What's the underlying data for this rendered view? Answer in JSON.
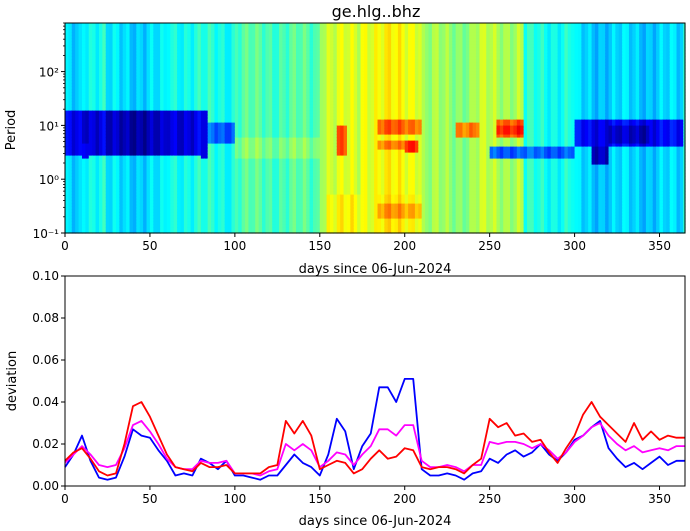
{
  "chart_data": [
    {
      "type": "heatmap",
      "title": "ge.hlg..bhz",
      "xlabel": "days since 06-Jun-2024",
      "ylabel": "Period",
      "xlim": [
        0,
        365
      ],
      "ylim": [
        0.1,
        800
      ],
      "y_scale": "log",
      "colormap": "jet",
      "xticks": [
        0,
        50,
        100,
        150,
        200,
        250,
        300,
        350
      ],
      "xtick_labels": [
        "0",
        "50",
        "100",
        "150",
        "200",
        "250",
        "300",
        "350"
      ],
      "yticks": [
        0.1,
        1,
        10,
        100
      ],
      "ytick_labels": [
        "10⁻¹",
        "10⁰",
        "10¹",
        "10²"
      ],
      "x_bands": [
        {
          "x": [
            0,
            10
          ],
          "level": 0.32
        },
        {
          "x": [
            10,
            25
          ],
          "level": 0.4
        },
        {
          "x": [
            25,
            60
          ],
          "level": 0.34
        },
        {
          "x": [
            60,
            100
          ],
          "level": 0.4
        },
        {
          "x": [
            100,
            150
          ],
          "level": 0.45
        },
        {
          "x": [
            150,
            175
          ],
          "level": 0.58
        },
        {
          "x": [
            175,
            210
          ],
          "level": 0.62
        },
        {
          "x": [
            210,
            240
          ],
          "level": 0.52
        },
        {
          "x": [
            240,
            270
          ],
          "level": 0.55
        },
        {
          "x": [
            270,
            300
          ],
          "level": 0.4
        },
        {
          "x": [
            300,
            365
          ],
          "level": 0.33
        }
      ],
      "features": [
        {
          "x": [
            0,
            85
          ],
          "period": [
            3,
            20
          ],
          "level": 0.1
        },
        {
          "x": [
            25,
            60
          ],
          "period": [
            3,
            20
          ],
          "level": 0.05
        },
        {
          "x": [
            10,
            14
          ],
          "period": [
            2.5,
            5
          ],
          "level": 0.15
        },
        {
          "x": [
            80,
            85
          ],
          "period": [
            2.5,
            20
          ],
          "level": 0.1
        },
        {
          "x": [
            85,
            100
          ],
          "period": [
            5,
            12
          ],
          "level": 0.22
        },
        {
          "x": [
            100,
            150
          ],
          "period": [
            2.5,
            6
          ],
          "level": 0.5
        },
        {
          "x": [
            160,
            166
          ],
          "period": [
            3,
            10
          ],
          "level": 0.78
        },
        {
          "x": [
            155,
            175
          ],
          "period": [
            0.1,
            0.5
          ],
          "level": 0.62
        },
        {
          "x": [
            185,
            210
          ],
          "period": [
            7,
            14
          ],
          "level": 0.78
        },
        {
          "x": [
            185,
            200
          ],
          "period": [
            3.5,
            5.5
          ],
          "level": 0.74
        },
        {
          "x": [
            200,
            208
          ],
          "period": [
            3.2,
            5.5
          ],
          "level": 0.86
        },
        {
          "x": [
            185,
            210
          ],
          "period": [
            0.1,
            0.5
          ],
          "level": 0.64
        },
        {
          "x": [
            185,
            210
          ],
          "period": [
            0.2,
            0.35
          ],
          "level": 0.72
        },
        {
          "x": [
            230,
            245
          ],
          "period": [
            6,
            12
          ],
          "level": 0.76
        },
        {
          "x": [
            255,
            270
          ],
          "period": [
            6,
            14
          ],
          "level": 0.8
        },
        {
          "x": [
            255,
            270
          ],
          "period": [
            7,
            10
          ],
          "level": 0.86
        },
        {
          "x": [
            250,
            300
          ],
          "period": [
            2.5,
            4
          ],
          "level": 0.22
        },
        {
          "x": [
            310,
            320
          ],
          "period": [
            2,
            4
          ],
          "level": 0.08
        },
        {
          "x": [
            300,
            365
          ],
          "period": [
            4,
            14
          ],
          "level": 0.12
        },
        {
          "x": [
            320,
            345
          ],
          "period": [
            5,
            10
          ],
          "level": 0.06
        }
      ]
    },
    {
      "type": "line",
      "xlabel": "days since 06-Jun-2024",
      "ylabel": "deviation",
      "xlim": [
        0,
        365
      ],
      "ylim": [
        0,
        0.1
      ],
      "xticks": [
        0,
        50,
        100,
        150,
        200,
        250,
        300,
        350
      ],
      "xtick_labels": [
        "0",
        "50",
        "100",
        "150",
        "200",
        "250",
        "300",
        "350"
      ],
      "yticks": [
        0,
        0.02,
        0.04,
        0.06,
        0.08,
        0.1
      ],
      "ytick_labels": [
        "0.00",
        "0.02",
        "0.04",
        "0.06",
        "0.08",
        "0.10"
      ],
      "x": [
        0,
        5,
        10,
        15,
        20,
        25,
        30,
        35,
        40,
        45,
        50,
        55,
        60,
        65,
        70,
        75,
        80,
        85,
        90,
        95,
        100,
        105,
        110,
        115,
        120,
        125,
        130,
        135,
        140,
        145,
        150,
        155,
        160,
        165,
        170,
        175,
        180,
        185,
        190,
        195,
        200,
        205,
        210,
        215,
        220,
        225,
        230,
        235,
        240,
        245,
        250,
        255,
        260,
        265,
        270,
        275,
        280,
        285,
        290,
        295,
        300,
        305,
        310,
        315,
        320,
        325,
        330,
        335,
        340,
        345,
        350,
        355,
        360,
        365
      ],
      "series": [
        {
          "color": "#0000ff",
          "values": [
            0.009,
            0.015,
            0.024,
            0.012,
            0.004,
            0.003,
            0.004,
            0.014,
            0.027,
            0.024,
            0.023,
            0.017,
            0.012,
            0.005,
            0.006,
            0.005,
            0.013,
            0.011,
            0.008,
            0.012,
            0.005,
            0.005,
            0.004,
            0.003,
            0.005,
            0.005,
            0.01,
            0.015,
            0.011,
            0.009,
            0.005,
            0.015,
            0.032,
            0.026,
            0.008,
            0.019,
            0.025,
            0.047,
            0.047,
            0.04,
            0.051,
            0.051,
            0.008,
            0.005,
            0.005,
            0.006,
            0.005,
            0.003,
            0.006,
            0.007,
            0.013,
            0.011,
            0.015,
            0.017,
            0.014,
            0.016,
            0.02,
            0.015,
            0.012,
            0.016,
            0.022,
            0.024,
            0.028,
            0.031,
            0.018,
            0.013,
            0.009,
            0.011,
            0.008,
            0.011,
            0.014,
            0.01,
            0.012,
            0.012
          ]
        },
        {
          "color": "#ff00ff",
          "values": [
            0.011,
            0.015,
            0.019,
            0.015,
            0.01,
            0.009,
            0.01,
            0.018,
            0.029,
            0.031,
            0.026,
            0.02,
            0.013,
            0.009,
            0.008,
            0.008,
            0.012,
            0.011,
            0.011,
            0.012,
            0.006,
            0.006,
            0.006,
            0.005,
            0.007,
            0.008,
            0.02,
            0.017,
            0.02,
            0.017,
            0.009,
            0.012,
            0.016,
            0.015,
            0.01,
            0.015,
            0.019,
            0.027,
            0.027,
            0.024,
            0.029,
            0.029,
            0.012,
            0.009,
            0.009,
            0.01,
            0.009,
            0.007,
            0.01,
            0.01,
            0.021,
            0.02,
            0.021,
            0.021,
            0.02,
            0.018,
            0.02,
            0.017,
            0.013,
            0.016,
            0.021,
            0.024,
            0.028,
            0.03,
            0.024,
            0.02,
            0.017,
            0.019,
            0.016,
            0.017,
            0.018,
            0.017,
            0.019,
            0.019
          ]
        },
        {
          "color": "#ff0000",
          "values": [
            0.012,
            0.016,
            0.018,
            0.013,
            0.007,
            0.005,
            0.006,
            0.02,
            0.038,
            0.04,
            0.033,
            0.024,
            0.015,
            0.009,
            0.008,
            0.007,
            0.011,
            0.009,
            0.009,
            0.01,
            0.006,
            0.006,
            0.006,
            0.006,
            0.009,
            0.01,
            0.031,
            0.025,
            0.031,
            0.024,
            0.008,
            0.01,
            0.012,
            0.011,
            0.006,
            0.008,
            0.013,
            0.017,
            0.013,
            0.014,
            0.018,
            0.017,
            0.009,
            0.008,
            0.009,
            0.009,
            0.008,
            0.006,
            0.01,
            0.013,
            0.032,
            0.028,
            0.03,
            0.024,
            0.025,
            0.021,
            0.022,
            0.016,
            0.011,
            0.018,
            0.024,
            0.034,
            0.04,
            0.033,
            0.029,
            0.025,
            0.021,
            0.03,
            0.022,
            0.026,
            0.022,
            0.024,
            0.023,
            0.023
          ]
        }
      ]
    }
  ]
}
